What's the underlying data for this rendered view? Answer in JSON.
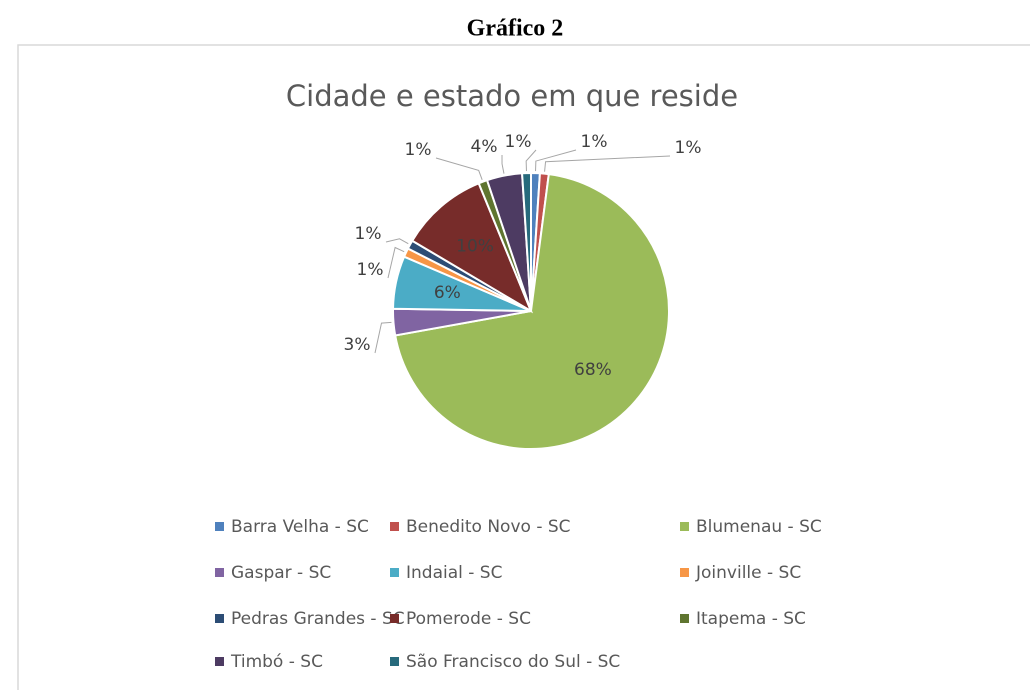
{
  "heading": "Gráfico 2",
  "chart_data": {
    "type": "pie",
    "title": "Cidade e estado em que reside",
    "categories": [
      "Barra Velha - SC",
      "Benedito Novo - SC",
      "Blumenau - SC",
      "Gaspar - SC",
      "Indaial - SC",
      "Joinville - SC",
      "Pedras Grandes - SC",
      "Pomerode - SC",
      "Itapema - SC",
      "Timbó - SC",
      "São Francisco do Sul  - SC"
    ],
    "values": [
      1,
      1,
      68,
      3,
      6,
      1,
      1,
      10,
      1,
      4,
      1
    ],
    "value_labels": [
      "1%",
      "1%",
      "68%",
      "3%",
      "6%",
      "1%",
      "1%",
      "10%",
      "1%",
      "4%",
      "1%"
    ],
    "colors": [
      "#4f81bd",
      "#c0504d",
      "#9bbb59",
      "#8064a2",
      "#4bacc6",
      "#f79646",
      "#2c4d75",
      "#772c2a",
      "#5f7530",
      "#4d3b62",
      "#276a7c"
    ],
    "legend": "bottom"
  }
}
